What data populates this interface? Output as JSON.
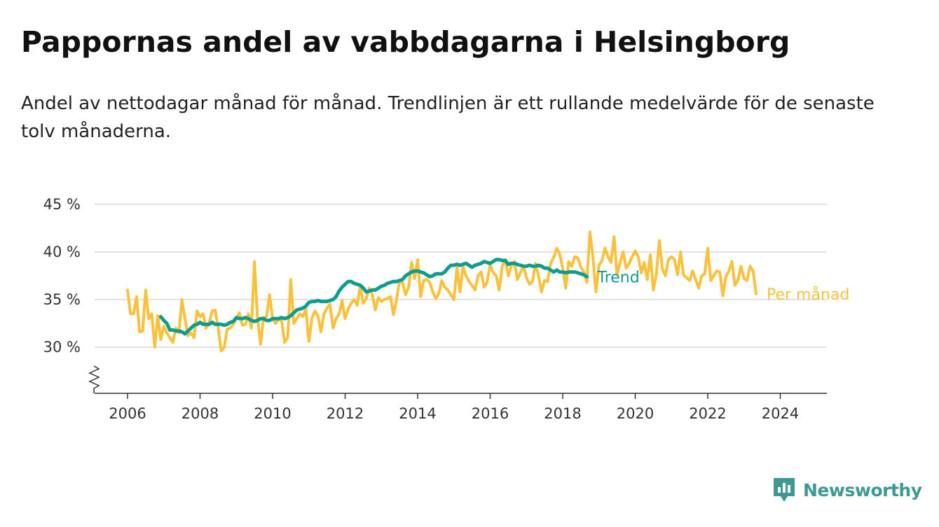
{
  "header": {
    "title": "Pappornas andel av vabbdagarna i Helsingborg",
    "subtitle": "Andel av nettodagar månad för månad. Trendlinjen är ett rullande medelvärde för de senaste tolv månaderna."
  },
  "brand": {
    "name": "Newsworthy",
    "color": "#3c9a93"
  },
  "chart_data": {
    "type": "line",
    "title": "Pappornas andel av vabbdagarna i Helsingborg",
    "subtitle": "Andel av nettodagar månad för månad. Trendlinjen är ett rullande medelvärde för de senaste tolv månaderna.",
    "xlabel": "",
    "ylabel": "",
    "xlim": [
      2005.7,
      2024.7
    ],
    "ylim": [
      25,
      45
    ],
    "y_axis_break": true,
    "grid": "horizontal",
    "legend": "direct labels at line ends (right)",
    "x_ticks": [
      2006,
      2008,
      2010,
      2012,
      2014,
      2016,
      2018,
      2020,
      2022,
      2024
    ],
    "x_tick_labels": [
      "2006",
      "2008",
      "2010",
      "2012",
      "2014",
      "2016",
      "2018",
      "2020",
      "2022",
      "2024"
    ],
    "y_ticks": [
      30,
      35,
      40,
      45
    ],
    "y_tick_labels": [
      "30 %",
      "35 %",
      "40 %",
      "45 %"
    ],
    "series": [
      {
        "name": "Per månad",
        "color": "#f9c13c",
        "x_start": "2006-01",
        "step": "month",
        "values": [
          36.0,
          33.5,
          33.5,
          35.3,
          31.6,
          31.7,
          36.0,
          33.0,
          33.5,
          30.0,
          33.3,
          30.8,
          32.2,
          31.5,
          31.0,
          30.5,
          32.0,
          31.5,
          35.0,
          33.0,
          31.2,
          31.5,
          31.0,
          33.8,
          33.2,
          33.5,
          32.0,
          32.5,
          33.8,
          33.9,
          32.0,
          29.6,
          30.0,
          31.9,
          32.0,
          32.4,
          33.0,
          33.6,
          32.3,
          32.4,
          33.5,
          32.0,
          39.0,
          33.1,
          30.3,
          33.1,
          33.2,
          35.5,
          33.0,
          32.5,
          32.9,
          32.8,
          30.5,
          31.0,
          37.1,
          32.5,
          33.0,
          33.5,
          33.2,
          34.0,
          30.6,
          33.0,
          33.8,
          33.3,
          31.6,
          33.5,
          34.1,
          34.5,
          32.0,
          33.0,
          33.5,
          34.9,
          33.0,
          34.0,
          34.6,
          35.0,
          34.4,
          36.4,
          34.6,
          35.1,
          36.2,
          35.5,
          33.9,
          35.2,
          34.8,
          35.0,
          35.1,
          35.3,
          33.4,
          35.0,
          36.9,
          36.8,
          35.5,
          36.3,
          38.9,
          37.2,
          39.2,
          35.3,
          37.0,
          37.1,
          36.8,
          35.8,
          35.1,
          35.6,
          37.0,
          36.3,
          36.0,
          35.5,
          35.0,
          38.4,
          35.8,
          38.5,
          37.5,
          36.9,
          36.5,
          36.0,
          37.5,
          37.9,
          36.3,
          36.8,
          38.7,
          37.8,
          37.5,
          36.0,
          38.5,
          39.2,
          37.5,
          38.5,
          39.0,
          37.1,
          37.8,
          38.5,
          37.3,
          36.6,
          36.9,
          38.8,
          37.5,
          35.8,
          37.0,
          36.9,
          38.8,
          39.4,
          40.4,
          39.8,
          38.3,
          36.2,
          39.0,
          38.5,
          39.5,
          39.4,
          38.4,
          37.9,
          36.8,
          42.1,
          39.6,
          35.8,
          38.6,
          39.1,
          40.4,
          39.5,
          38.9,
          41.6,
          37.6,
          38.9,
          40.0,
          38.3,
          38.8,
          39.5,
          40.1,
          39.5,
          37.8,
          38.9,
          37.1,
          39.7,
          36.0,
          37.7,
          41.2,
          38.2,
          37.5,
          39.2,
          39.5,
          39.2,
          37.6,
          40.0,
          37.6,
          37.3,
          37.0,
          38.0,
          37.1,
          36.2,
          37.5,
          37.7,
          40.4,
          37.0,
          37.5,
          38.0,
          37.9,
          35.4,
          37.4,
          38.0,
          39.0,
          36.5,
          37.0,
          38.5,
          37.2,
          37.0,
          38.5,
          38.0,
          35.6
        ]
      },
      {
        "name": "Trend",
        "color": "#0e9c8f",
        "x_start": "2006-12",
        "step": "month",
        "values": [
          33.2,
          32.8,
          32.5,
          31.8,
          31.8,
          31.7,
          31.7,
          31.6,
          31.4,
          31.7,
          32.0,
          32.3,
          32.4,
          32.6,
          32.4,
          32.4,
          32.4,
          32.6,
          32.4,
          32.4,
          32.4,
          32.3,
          32.4,
          32.6,
          32.7,
          33.1,
          33.0,
          33.0,
          33.1,
          33.0,
          32.8,
          32.7,
          32.8,
          33.0,
          33.0,
          32.8,
          32.8,
          33.0,
          33.0,
          33.0,
          33.1,
          33.0,
          33.1,
          33.3,
          33.6,
          33.9,
          34.0,
          34.1,
          34.3,
          34.7,
          34.8,
          34.8,
          34.9,
          34.8,
          34.8,
          34.8,
          34.9,
          35.0,
          35.3,
          35.9,
          36.3,
          36.6,
          36.9,
          36.9,
          36.7,
          36.6,
          36.5,
          36.2,
          35.8,
          35.9,
          36.0,
          36.0,
          36.2,
          36.4,
          36.5,
          36.7,
          36.8,
          36.9,
          36.9,
          37.0,
          37.1,
          37.5,
          37.7,
          37.9,
          38.0,
          38.0,
          37.9,
          37.8,
          37.6,
          37.4,
          37.5,
          37.7,
          37.7,
          37.7,
          37.9,
          38.3,
          38.6,
          38.6,
          38.7,
          38.6,
          38.7,
          38.8,
          38.6,
          38.4,
          38.6,
          38.7,
          38.8,
          39.0,
          38.9,
          38.8,
          39.0,
          39.2,
          39.2,
          39.1,
          39.1,
          38.7,
          38.8,
          38.8,
          38.7,
          38.6,
          38.5,
          38.5,
          38.6,
          38.5,
          38.5,
          38.6,
          38.5,
          38.3,
          38.3,
          38.1,
          37.9,
          38.1,
          37.9,
          37.9,
          37.8,
          37.9,
          37.9,
          37.9,
          37.8,
          37.7,
          37.6,
          37.4
        ]
      }
    ]
  }
}
